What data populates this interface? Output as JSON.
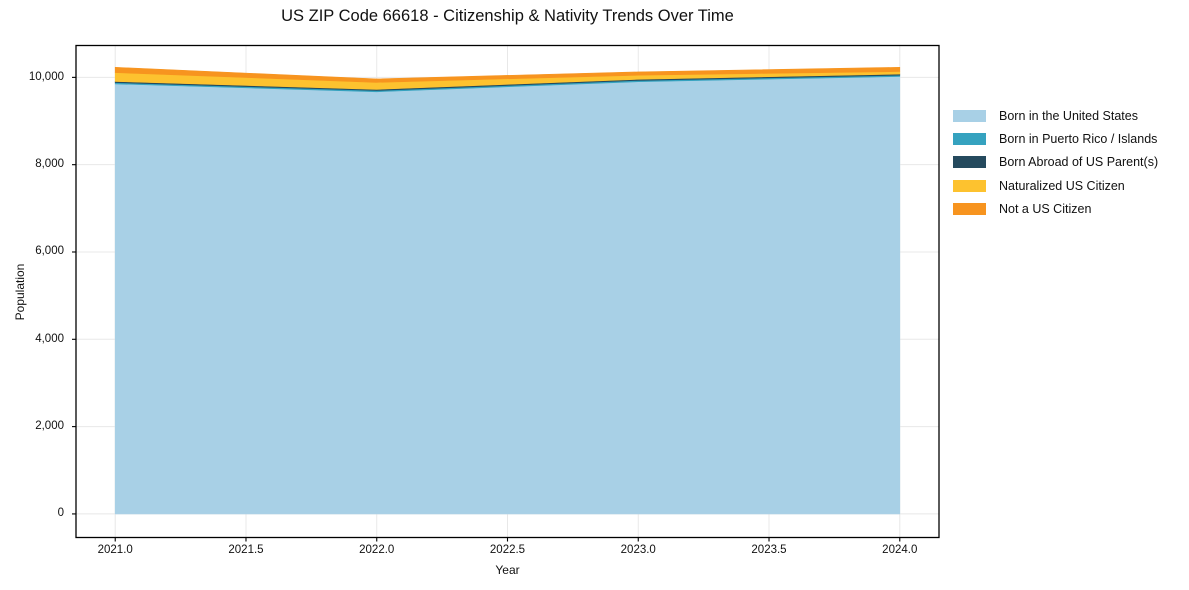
{
  "title": "US ZIP Code 66618 - Citizenship & Nativity Trends Over Time",
  "chart_data": {
    "type": "area",
    "stacked": true,
    "title": "US ZIP Code 66618 - Citizenship & Nativity Trends Over Time",
    "xlabel": "Year",
    "ylabel": "Population",
    "x": [
      2021,
      2022,
      2023,
      2024
    ],
    "series": [
      {
        "name": "Born in the United States",
        "color": "#a8d0e6",
        "values": [
          9850,
          9670,
          9900,
          10020
        ]
      },
      {
        "name": "Born in Puerto Rico / Islands",
        "color": "#35a2bf",
        "values": [
          30,
          30,
          30,
          30
        ]
      },
      {
        "name": "Born Abroad of US Parent(s)",
        "color": "#254a5e",
        "values": [
          25,
          25,
          25,
          25
        ]
      },
      {
        "name": "Naturalized US Citizen",
        "color": "#fdc22f",
        "values": [
          205,
          160,
          95,
          60
        ]
      },
      {
        "name": "Not a US Citizen",
        "color": "#f7941f",
        "values": [
          120,
          80,
          75,
          95
        ]
      }
    ],
    "xlim": [
      2020.85,
      2024.15
    ],
    "ylim": [
      -540,
      10730
    ],
    "xticks": [
      2021.0,
      2021.5,
      2022.0,
      2022.5,
      2023.0,
      2023.5,
      2024.0
    ],
    "xtick_labels": [
      "2021.0",
      "2021.5",
      "2022.0",
      "2022.5",
      "2023.0",
      "2023.5",
      "2024.0"
    ],
    "yticks": [
      0,
      2000,
      4000,
      6000,
      8000,
      10000
    ],
    "ytick_labels": [
      "0",
      "2,000",
      "4,000",
      "6,000",
      "8,000",
      "10,000"
    ],
    "grid": true,
    "grid_color": "#e8e8e8",
    "spine_color": "#000000",
    "legend_position": "right-outside"
  }
}
